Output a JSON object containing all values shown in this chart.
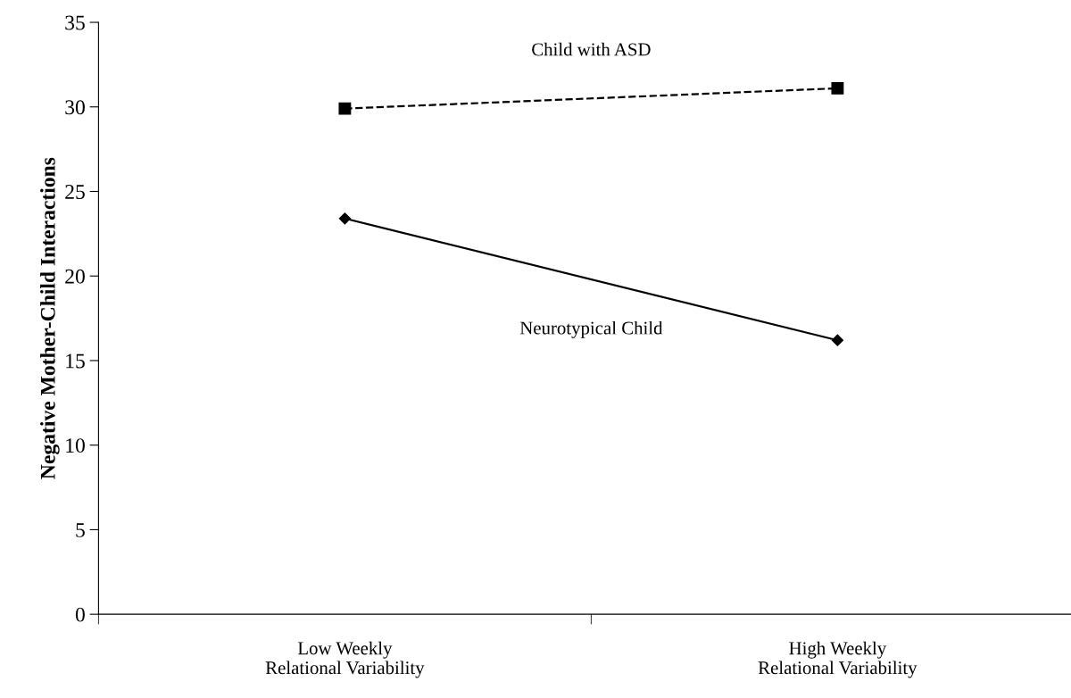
{
  "chart_data": {
    "type": "line",
    "ylabel": "Negative Mother-Child Interactions",
    "categories": [
      "Low Weekly\nRelational Variability",
      "High Weekly\nRelational Variability"
    ],
    "series": [
      {
        "name": "Child with ASD",
        "color": "#000000",
        "values": [
          29.9,
          31.1
        ],
        "marker": "square",
        "line_style": "dashed"
      },
      {
        "name": "Neurotypical Child",
        "color": "#000000",
        "values": [
          23.4,
          16.2
        ],
        "marker": "diamond",
        "line_style": "solid"
      }
    ],
    "ylim": [
      0,
      35
    ],
    "yticks": [
      0,
      5,
      10,
      15,
      20,
      25,
      30,
      35
    ],
    "grid": false,
    "legend": false
  }
}
